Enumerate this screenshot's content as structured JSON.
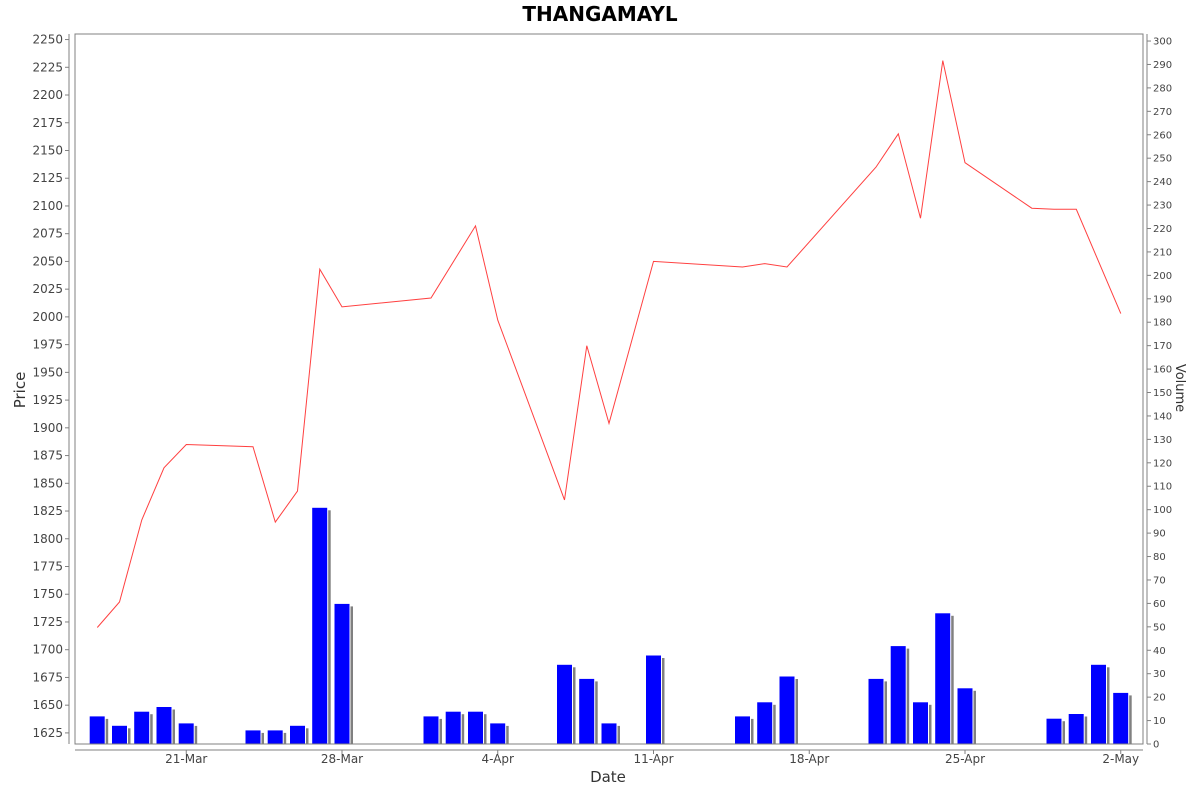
{
  "chart_data": {
    "type": "line",
    "title": "THANGAMAYL",
    "xlabel": "Date",
    "ylabel": "Price",
    "y2label": "Volume",
    "ylim": [
      1615,
      2255
    ],
    "y2lim": [
      0,
      303
    ],
    "yticks": [
      1625,
      1650,
      1675,
      1700,
      1725,
      1750,
      1775,
      1800,
      1825,
      1850,
      1875,
      1900,
      1925,
      1950,
      1975,
      2000,
      2025,
      2050,
      2075,
      2100,
      2125,
      2150,
      2175,
      2200,
      2225,
      2250
    ],
    "y2ticks": [
      0,
      10,
      20,
      30,
      40,
      50,
      60,
      70,
      80,
      90,
      100,
      110,
      120,
      130,
      140,
      150,
      160,
      170,
      180,
      190,
      200,
      210,
      220,
      230,
      240,
      250,
      260,
      270,
      280,
      290,
      300
    ],
    "xlim": [
      "2024-03-16",
      "2024-05-03"
    ],
    "xticks": [
      {
        "date": "2024-03-21",
        "label": "21-Mar"
      },
      {
        "date": "2024-03-28",
        "label": "28-Mar"
      },
      {
        "date": "2024-04-04",
        "label": "4-Apr"
      },
      {
        "date": "2024-04-11",
        "label": "11-Apr"
      },
      {
        "date": "2024-04-18",
        "label": "18-Apr"
      },
      {
        "date": "2024-04-25",
        "label": "25-Apr"
      },
      {
        "date": "2024-05-02",
        "label": "2-May"
      }
    ],
    "grid": false,
    "series": [
      {
        "kind": "line",
        "axis": "left",
        "color": "#ff4040",
        "points": [
          [
            "2024-03-17",
            1720
          ],
          [
            "2024-03-18",
            1743
          ],
          [
            "2024-03-19",
            1817
          ],
          [
            "2024-03-20",
            1864
          ],
          [
            "2024-03-21",
            1885
          ],
          [
            "2024-03-24",
            1883
          ],
          [
            "2024-03-25",
            1815
          ],
          [
            "2024-03-26",
            1843
          ],
          [
            "2024-03-27",
            2043
          ],
          [
            "2024-03-28",
            2009
          ],
          [
            "2024-04-01",
            2017
          ],
          [
            "2024-04-03",
            2082
          ],
          [
            "2024-04-04",
            1997
          ],
          [
            "2024-04-07",
            1835
          ],
          [
            "2024-04-08",
            1974
          ],
          [
            "2024-04-09",
            1904
          ],
          [
            "2024-04-11",
            2050
          ],
          [
            "2024-04-15",
            2045
          ],
          [
            "2024-04-16",
            2048
          ],
          [
            "2024-04-17",
            2045
          ],
          [
            "2024-04-21",
            2135
          ],
          [
            "2024-04-22",
            2165
          ],
          [
            "2024-04-23",
            2089
          ],
          [
            "2024-04-24",
            2231
          ],
          [
            "2024-04-25",
            2139
          ],
          [
            "2024-04-28",
            2098
          ],
          [
            "2024-04-29",
            2097
          ],
          [
            "2024-04-30",
            2097
          ],
          [
            "2024-05-02",
            2003
          ]
        ]
      },
      {
        "kind": "bar",
        "axis": "right",
        "color": "#0000ff",
        "points": [
          [
            "2024-03-17",
            12
          ],
          [
            "2024-03-18",
            8
          ],
          [
            "2024-03-19",
            14
          ],
          [
            "2024-03-20",
            16
          ],
          [
            "2024-03-21",
            9
          ],
          [
            "2024-03-24",
            6
          ],
          [
            "2024-03-25",
            6
          ],
          [
            "2024-03-26",
            8
          ],
          [
            "2024-03-27",
            101
          ],
          [
            "2024-03-28",
            60
          ],
          [
            "2024-04-01",
            12
          ],
          [
            "2024-04-02",
            14
          ],
          [
            "2024-04-03",
            14
          ],
          [
            "2024-04-04",
            9
          ],
          [
            "2024-04-07",
            34
          ],
          [
            "2024-04-08",
            28
          ],
          [
            "2024-04-09",
            9
          ],
          [
            "2024-04-11",
            38
          ],
          [
            "2024-04-15",
            12
          ],
          [
            "2024-04-16",
            18
          ],
          [
            "2024-04-17",
            29
          ],
          [
            "2024-04-21",
            28
          ],
          [
            "2024-04-22",
            42
          ],
          [
            "2024-04-23",
            18
          ],
          [
            "2024-04-24",
            56
          ],
          [
            "2024-04-25",
            24
          ],
          [
            "2024-04-29",
            11
          ],
          [
            "2024-04-30",
            13
          ],
          [
            "2024-05-01",
            34
          ],
          [
            "2024-05-02",
            22
          ]
        ]
      }
    ]
  }
}
